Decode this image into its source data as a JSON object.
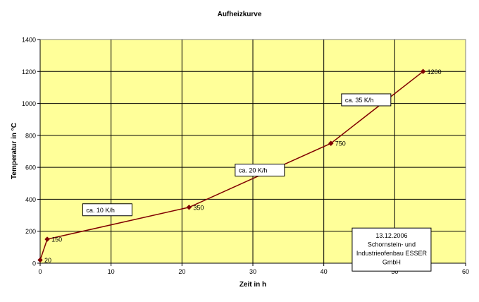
{
  "chart_data": {
    "type": "line",
    "title": "Aufheizkurve",
    "xlabel": "Zeit in h",
    "ylabel": "Temperatur in °C",
    "xlim": [
      0,
      60
    ],
    "ylim": [
      0,
      1400
    ],
    "x_ticks": [
      0,
      10,
      20,
      30,
      40,
      50,
      60
    ],
    "y_ticks": [
      0,
      200,
      400,
      600,
      800,
      1000,
      1200,
      1400
    ],
    "grid": true,
    "colors": {
      "plot_background": "#FFFF99",
      "line": "#800000",
      "marker": "#800000",
      "grid": "#000000"
    },
    "series": [
      {
        "x": [
          0,
          1,
          21,
          41,
          54
        ],
        "values": [
          20,
          150,
          350,
          750,
          1200
        ],
        "point_labels": [
          "20",
          "150",
          "350",
          "750",
          "1200"
        ]
      }
    ],
    "annotations": [
      {
        "text": "ca. 10 K/h",
        "x": 6,
        "y": 372
      },
      {
        "text": "ca. 20 K/h",
        "x": 27.5,
        "y": 620
      },
      {
        "text": "ca. 35 K/h",
        "x": 42.5,
        "y": 1060
      }
    ],
    "info_box": {
      "lines": [
        "13.12.2006",
        "Schornstein- und",
        "Industrieofenbau ESSER",
        "GmbH"
      ],
      "x": 44,
      "y": 220
    }
  }
}
